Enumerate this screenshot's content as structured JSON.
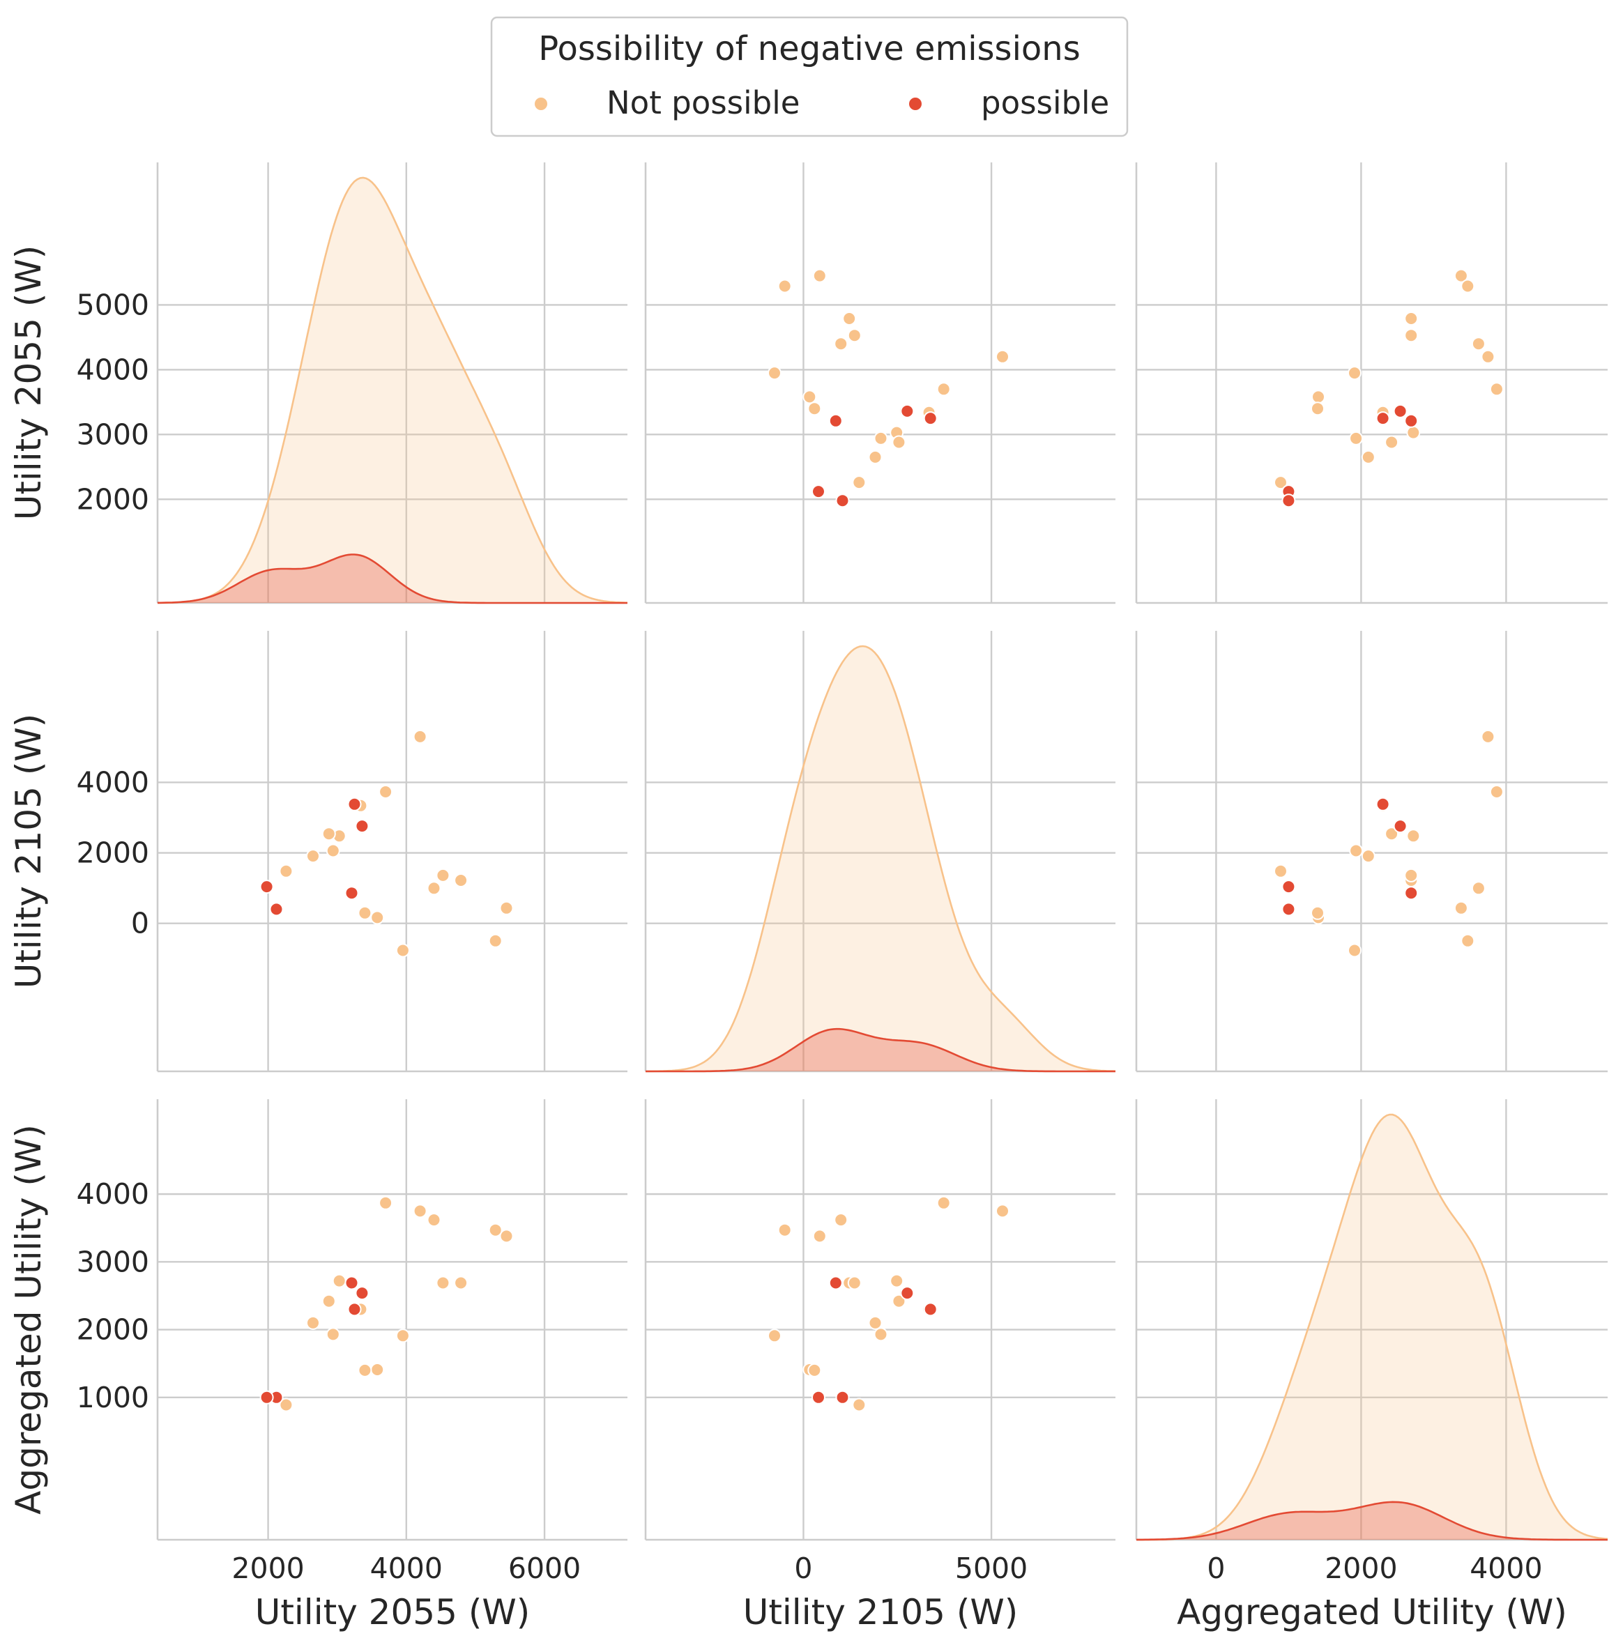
{
  "legend": {
    "title": "Possibility of negative emissions",
    "entries": [
      {
        "label": "Not possible",
        "color": "#f8c28a"
      },
      {
        "label": "possible",
        "color": "#e34a33"
      }
    ]
  },
  "chart_data": {
    "type": "scatter",
    "kind": "pairplot",
    "diag_kind": "kde",
    "grid": true,
    "legend_position": "top-center",
    "hue_name": "Possibility of negative emissions",
    "variables": [
      {
        "name": "Utility 2055 (W)",
        "ticks": [
          2000,
          3000,
          4000,
          5000
        ],
        "xticks": [
          2000,
          4000,
          6000
        ],
        "range": [
          400,
          7200
        ]
      },
      {
        "name": "Utility 2105 (W)",
        "ticks": [
          0,
          2000,
          4000
        ],
        "xticks": [
          0,
          5000
        ],
        "range": [
          -4200,
          8300
        ]
      },
      {
        "name": "Aggregated Utility (W)",
        "ticks": [
          1000,
          2000,
          3000,
          4000
        ],
        "xticks": [
          0,
          2000,
          4000
        ],
        "range": [
          -1100,
          5400
        ]
      }
    ],
    "series": [
      {
        "name": "Not possible",
        "color": "#f8c28a",
        "points": [
          [
            5450,
            432,
            3380
          ],
          [
            5290,
            -497,
            3470
          ],
          [
            4790,
            1220,
            2690
          ],
          [
            4530,
            1360,
            2690
          ],
          [
            4400,
            996,
            3620
          ],
          [
            4200,
            5296,
            3750
          ],
          [
            3950,
            -769,
            1910
          ],
          [
            3700,
            3732,
            3870
          ],
          [
            3580,
            164,
            1410
          ],
          [
            3400,
            294,
            1400
          ],
          [
            3360,
            2720,
            2540
          ],
          [
            3340,
            3340,
            2300
          ],
          [
            3030,
            2480,
            2720
          ],
          [
            2940,
            2060,
            1930
          ],
          [
            2880,
            2540,
            2420
          ],
          [
            2650,
            1910,
            2100
          ],
          [
            2260,
            1480,
            890
          ]
        ]
      },
      {
        "name": "possible",
        "color": "#e34a33",
        "points": [
          [
            3360,
            2760,
            2540
          ],
          [
            3250,
            3380,
            2300
          ],
          [
            3210,
            860,
            2690
          ],
          [
            2120,
            400,
            1000
          ],
          [
            1980,
            1040,
            1000
          ]
        ]
      }
    ]
  }
}
